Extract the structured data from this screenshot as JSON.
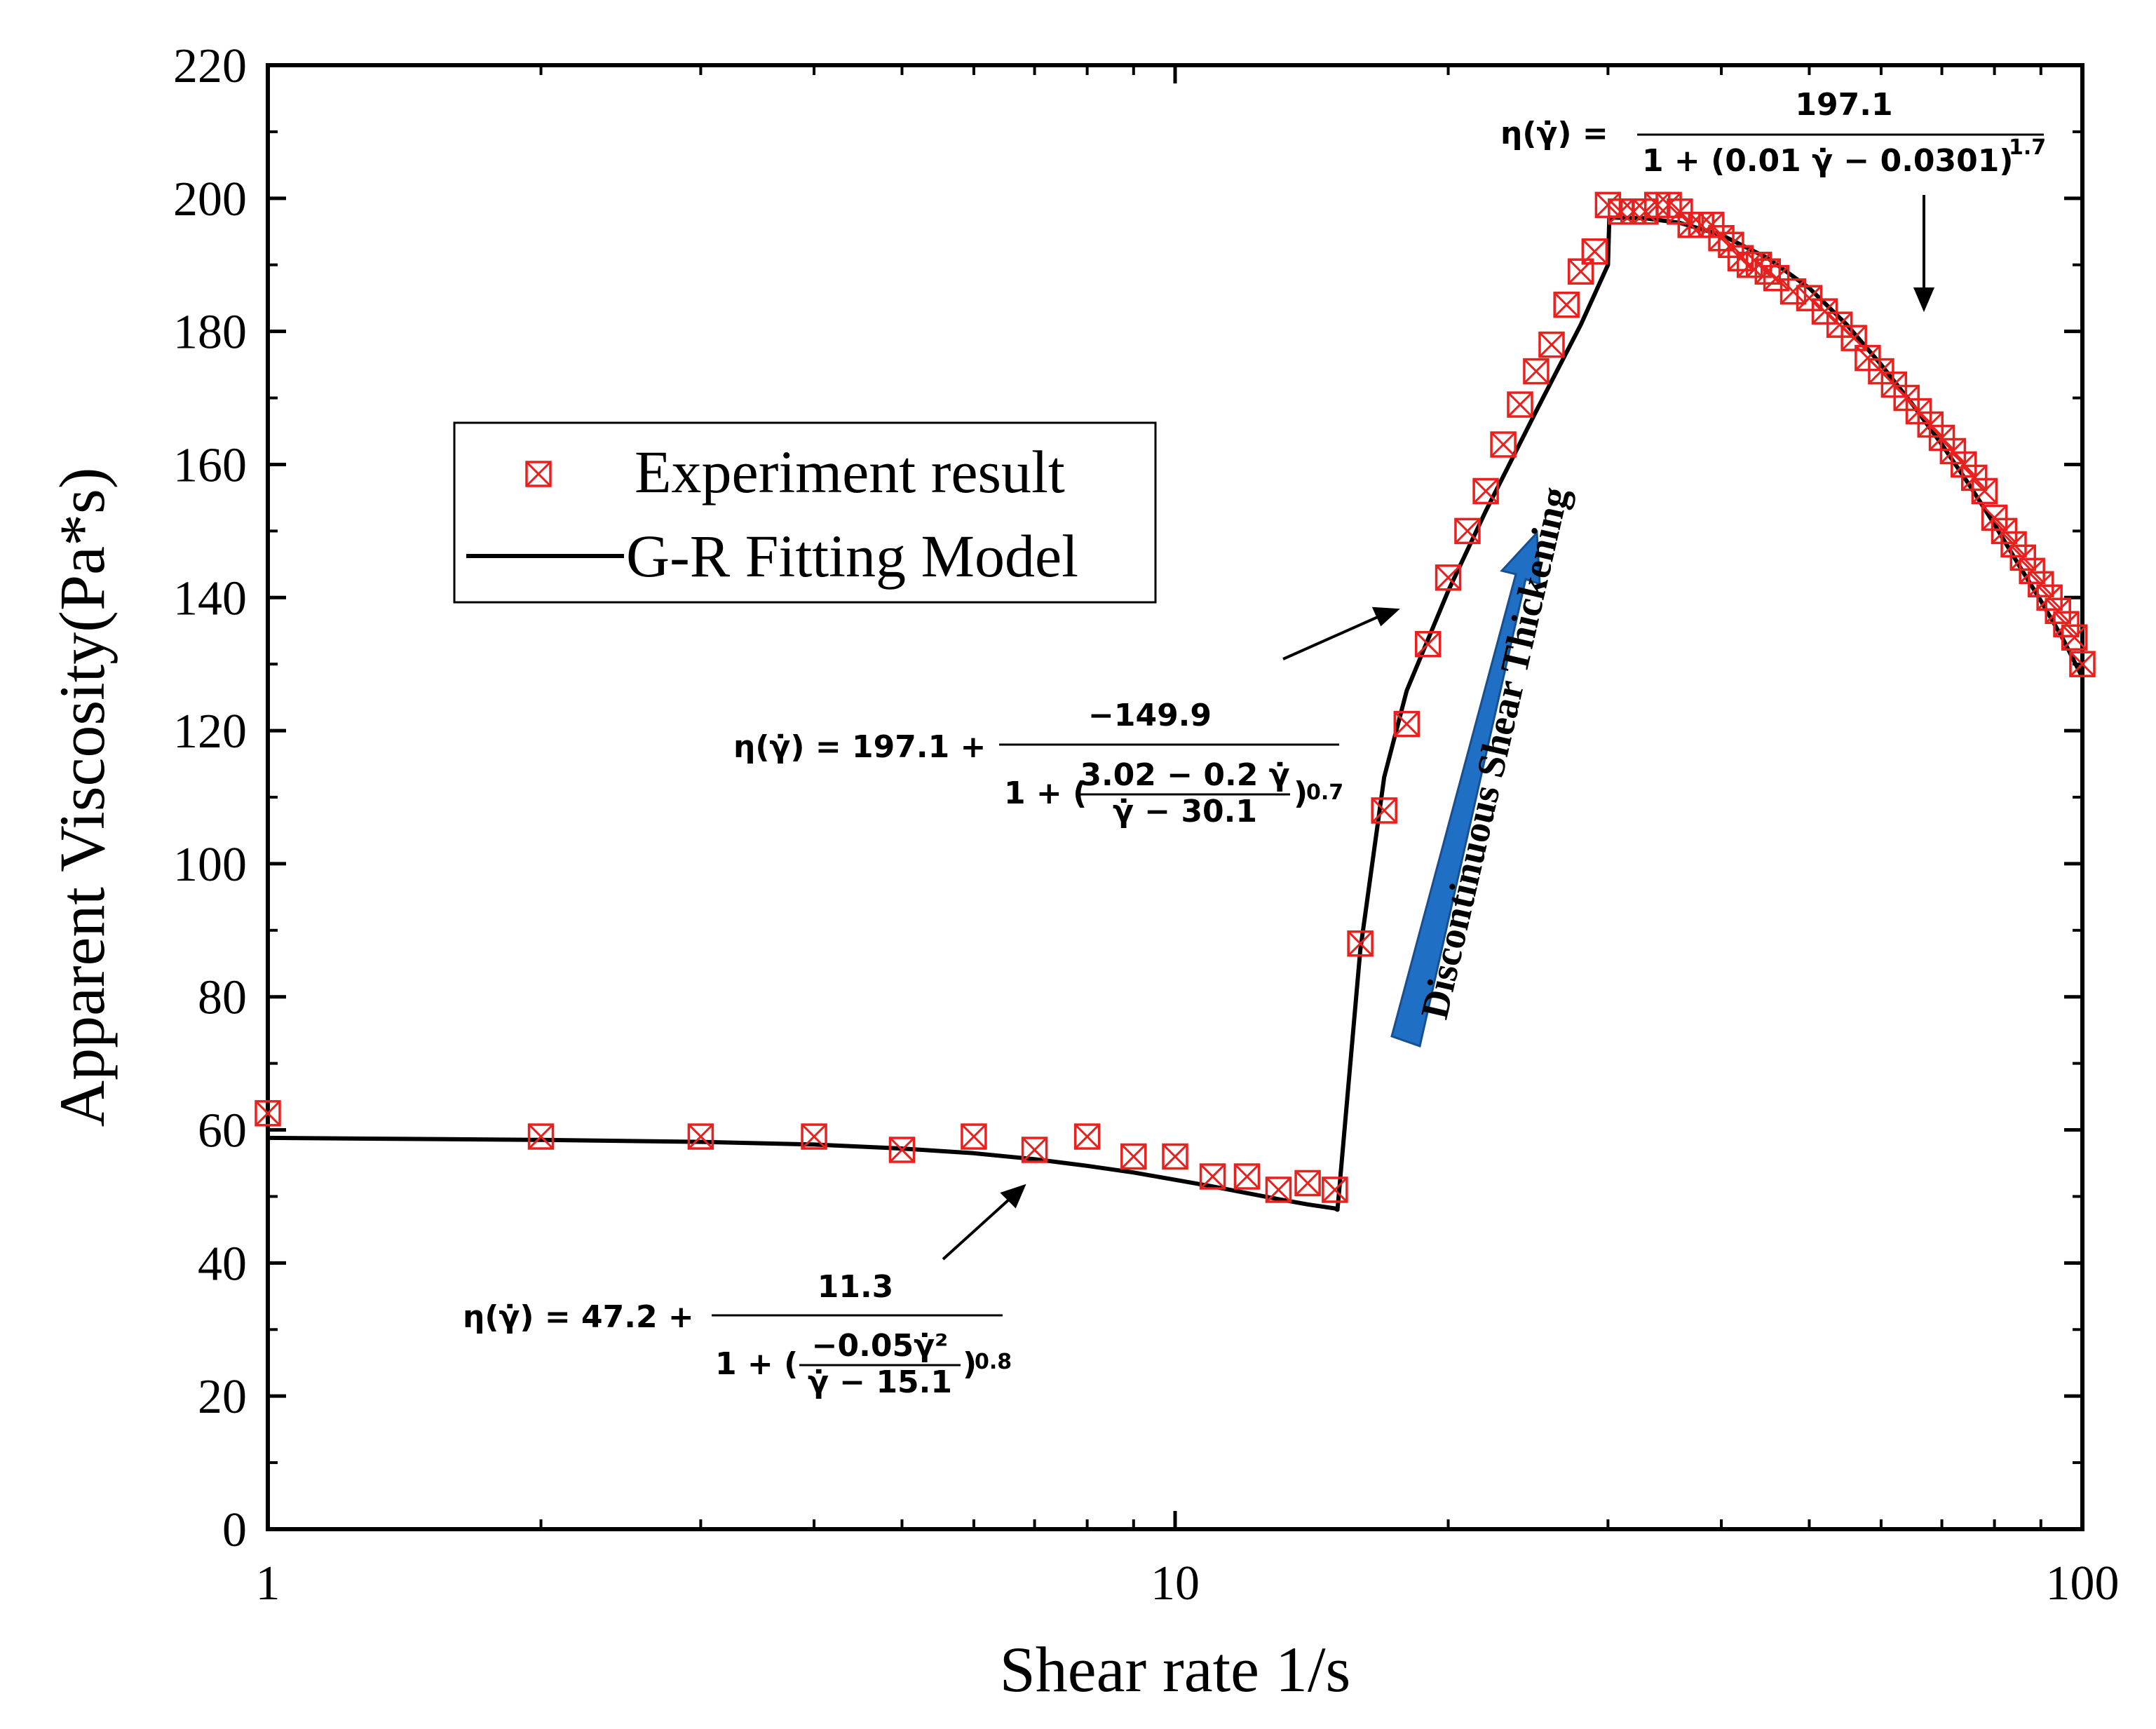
{
  "chart_data": {
    "type": "scatter",
    "xscale": "log",
    "xlim": [
      1,
      100
    ],
    "ylim": [
      0,
      220
    ],
    "xlabel": "Shear rate 1/s",
    "ylabel": "Apparent Viscosity(Pa*s)",
    "xticks": [
      1,
      10,
      100
    ],
    "xtick_labels": [
      "1",
      "10",
      "100"
    ],
    "yticks": [
      0,
      20,
      40,
      60,
      80,
      100,
      120,
      140,
      160,
      180,
      200,
      220
    ],
    "ytick_labels": [
      "0",
      "20",
      "40",
      "60",
      "80",
      "100",
      "120",
      "140",
      "160",
      "180",
      "200",
      "220"
    ],
    "colors": {
      "experiment": "#e8201e",
      "model": "#000000",
      "arrow": "#1f6fc5"
    },
    "legend": {
      "placement": "center-left",
      "entries": [
        "Experiment result",
        "G-R Fitting Model"
      ]
    },
    "series": [
      {
        "name": "Experiment result",
        "marker": "boxed-x",
        "x": [
          1,
          2,
          3,
          4,
          5,
          6,
          7,
          8,
          9,
          10,
          11,
          12,
          13,
          14,
          15,
          16,
          17,
          18,
          19,
          20,
          21,
          22,
          23,
          24,
          25,
          26,
          27,
          28,
          29,
          30,
          31,
          32,
          33,
          34,
          35,
          36,
          37,
          38,
          39,
          40,
          41,
          42,
          43,
          44,
          45,
          46,
          48,
          50,
          52,
          54,
          56,
          58,
          60,
          62,
          64,
          66,
          68,
          70,
          72,
          74,
          76,
          78,
          80,
          82,
          84,
          86,
          88,
          90,
          92,
          94,
          96,
          98,
          100
        ],
        "y": [
          62.5,
          59,
          59,
          59,
          57,
          59,
          57,
          59,
          56,
          56,
          53,
          53,
          51,
          52,
          51,
          88,
          108,
          121,
          133,
          143,
          150,
          156,
          163,
          169,
          174,
          178,
          184,
          189,
          192,
          199,
          198,
          198,
          198,
          199,
          199,
          198,
          196,
          196,
          196,
          194,
          193,
          191,
          190,
          190,
          189,
          188,
          186,
          185,
          183,
          181,
          179,
          176,
          174,
          172,
          170,
          168,
          166,
          164,
          162,
          160,
          158,
          156,
          152,
          150,
          148,
          146,
          144,
          142,
          140,
          138,
          136,
          134,
          130
        ]
      },
      {
        "name": "G-R Fitting Model",
        "x": [
          1,
          2,
          3,
          4,
          5,
          6,
          7,
          8,
          9,
          10,
          11,
          12,
          13,
          14,
          15,
          15.1,
          16,
          17,
          18,
          20,
          22,
          25,
          28,
          30,
          30.1,
          33,
          36,
          40,
          45,
          50,
          55,
          60,
          65,
          70,
          75,
          80,
          85,
          90,
          95,
          100
        ],
        "y": [
          58.8,
          58.5,
          58.2,
          57.8,
          57.2,
          56.5,
          55.6,
          54.6,
          53.6,
          52.5,
          51.5,
          50.5,
          49.6,
          48.8,
          48.2,
          48.0,
          87,
          113,
          126,
          141,
          153,
          168,
          181,
          190,
          197.1,
          197.0,
          196.3,
          194.5,
          191,
          186.5,
          181,
          175,
          169,
          163,
          157,
          151,
          145,
          139.5,
          134,
          128
        ]
      }
    ],
    "annotations": {
      "eq_high_lhs": "η(γ̇) =",
      "eq_high_num": "197.1",
      "eq_high_den": "1 + (0.01 γ̇ − 0.0301)",
      "eq_high_exp": "1.7",
      "eq_mid_lhs": "η(γ̇) = 197.1 +",
      "eq_mid_num": "−149.9",
      "eq_mid_den_a": "1 + (",
      "eq_mid_inner_num": "3.02 − 0.2 γ̇",
      "eq_mid_inner_den": "γ̇ − 30.1",
      "eq_mid_den_b": ")",
      "eq_mid_exp": "0.7",
      "eq_low_lhs": "η(γ̇) = 47.2 +",
      "eq_low_num": "11.3",
      "eq_low_den_a": "1 + (",
      "eq_low_inner_num": "−0.05γ̇²",
      "eq_low_inner_den": "γ̇ − 15.1",
      "eq_low_den_b": ")",
      "eq_low_exp": "0.8",
      "region_label": "Discontinuous Shear Thickening"
    }
  }
}
